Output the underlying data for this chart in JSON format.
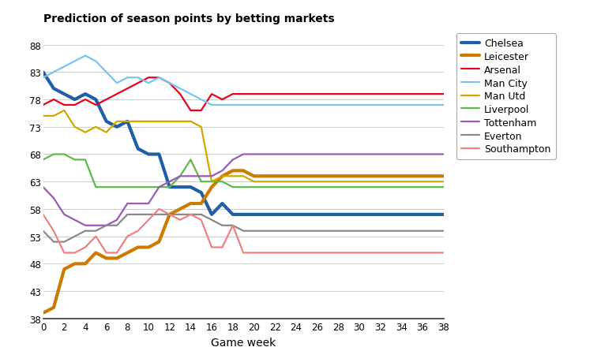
{
  "title": "Prediction of season points by betting markets",
  "xlabel": "Game week",
  "ylabel": "",
  "xlim": [
    0,
    38
  ],
  "ylim": [
    38,
    91
  ],
  "yticks": [
    38,
    43,
    48,
    53,
    58,
    63,
    68,
    73,
    78,
    83,
    88
  ],
  "xticks": [
    0,
    2,
    4,
    6,
    8,
    10,
    12,
    14,
    16,
    18,
    20,
    22,
    24,
    26,
    28,
    30,
    32,
    34,
    36,
    38
  ],
  "teams": {
    "Chelsea": {
      "color": "#1e5fa8",
      "linewidth": 3.0,
      "x": [
        0,
        1,
        2,
        3,
        4,
        5,
        6,
        7,
        8,
        9,
        10,
        11,
        12,
        13,
        14,
        15,
        16,
        17,
        18,
        19,
        20,
        38
      ],
      "y": [
        83,
        80,
        79,
        78,
        79,
        78,
        74,
        73,
        74,
        69,
        68,
        68,
        62,
        62,
        62,
        61,
        57,
        59,
        57,
        57,
        57,
        57
      ]
    },
    "Leicester": {
      "color": "#cc7a00",
      "linewidth": 3.0,
      "x": [
        0,
        1,
        2,
        3,
        4,
        5,
        6,
        7,
        8,
        9,
        10,
        11,
        12,
        13,
        14,
        15,
        16,
        17,
        18,
        19,
        20,
        38
      ],
      "y": [
        39,
        40,
        47,
        48,
        48,
        50,
        49,
        49,
        50,
        51,
        51,
        52,
        57,
        58,
        59,
        59,
        62,
        64,
        65,
        65,
        64,
        64
      ]
    },
    "Arsenal": {
      "color": "#e8001c",
      "linewidth": 1.6,
      "x": [
        0,
        1,
        2,
        3,
        4,
        5,
        6,
        7,
        8,
        9,
        10,
        11,
        12,
        13,
        14,
        15,
        16,
        17,
        18,
        19,
        20,
        38
      ],
      "y": [
        77,
        78,
        77,
        77,
        78,
        77,
        78,
        79,
        80,
        81,
        82,
        82,
        81,
        79,
        76,
        76,
        79,
        78,
        79,
        79,
        79,
        79
      ]
    },
    "Man City": {
      "color": "#77c4f0",
      "linewidth": 1.6,
      "x": [
        0,
        1,
        2,
        3,
        4,
        5,
        6,
        7,
        8,
        9,
        10,
        11,
        12,
        13,
        14,
        15,
        16,
        17,
        18,
        19,
        20,
        38
      ],
      "y": [
        82,
        83,
        84,
        85,
        86,
        85,
        83,
        81,
        82,
        82,
        81,
        82,
        81,
        80,
        79,
        78,
        77,
        77,
        77,
        77,
        77,
        77
      ]
    },
    "Man Utd": {
      "color": "#d4a500",
      "linewidth": 1.6,
      "x": [
        0,
        1,
        2,
        3,
        4,
        5,
        6,
        7,
        8,
        9,
        10,
        11,
        12,
        13,
        14,
        15,
        16,
        17,
        18,
        19,
        20,
        38
      ],
      "y": [
        75,
        75,
        76,
        73,
        72,
        73,
        72,
        74,
        74,
        74,
        74,
        74,
        74,
        74,
        74,
        73,
        63,
        64,
        64,
        64,
        63,
        63
      ]
    },
    "Liverpool": {
      "color": "#5cba47",
      "linewidth": 1.6,
      "x": [
        0,
        1,
        2,
        3,
        4,
        5,
        6,
        7,
        8,
        9,
        10,
        11,
        12,
        13,
        14,
        15,
        16,
        17,
        18,
        19,
        20,
        38
      ],
      "y": [
        67,
        68,
        68,
        67,
        67,
        62,
        62,
        62,
        62,
        62,
        62,
        62,
        62,
        64,
        67,
        63,
        63,
        63,
        62,
        62,
        62,
        62
      ]
    },
    "Tottenham": {
      "color": "#9b59b6",
      "linewidth": 1.6,
      "x": [
        0,
        1,
        2,
        3,
        4,
        5,
        6,
        7,
        8,
        9,
        10,
        11,
        12,
        13,
        14,
        15,
        16,
        17,
        18,
        19,
        20,
        38
      ],
      "y": [
        62,
        60,
        57,
        56,
        55,
        55,
        55,
        56,
        59,
        59,
        59,
        62,
        63,
        64,
        64,
        64,
        64,
        65,
        67,
        68,
        68,
        68
      ]
    },
    "Everton": {
      "color": "#888888",
      "linewidth": 1.6,
      "x": [
        0,
        1,
        2,
        3,
        4,
        5,
        6,
        7,
        8,
        9,
        10,
        11,
        12,
        13,
        14,
        15,
        16,
        17,
        18,
        19,
        20,
        38
      ],
      "y": [
        54,
        52,
        52,
        53,
        54,
        54,
        55,
        55,
        57,
        57,
        57,
        57,
        57,
        57,
        57,
        57,
        56,
        55,
        55,
        54,
        54,
        54
      ]
    },
    "Southampton": {
      "color": "#f08080",
      "linewidth": 1.6,
      "x": [
        0,
        1,
        2,
        3,
        4,
        5,
        6,
        7,
        8,
        9,
        10,
        11,
        12,
        13,
        14,
        15,
        16,
        17,
        18,
        19,
        20,
        38
      ],
      "y": [
        57,
        54,
        50,
        50,
        51,
        53,
        50,
        50,
        53,
        54,
        56,
        58,
        57,
        56,
        57,
        56,
        51,
        51,
        55,
        50,
        50,
        50
      ]
    }
  },
  "legend_order": [
    "Chelsea",
    "Leicester",
    "Arsenal",
    "Man City",
    "Man Utd",
    "Liverpool",
    "Tottenham",
    "Everton",
    "Southampton"
  ],
  "background_color": "#ffffff",
  "grid_color": "#cccccc"
}
